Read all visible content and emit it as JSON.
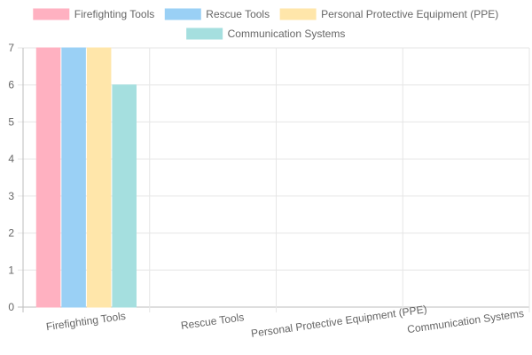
{
  "chart_data": {
    "type": "bar",
    "categories": [
      "Firefighting Tools",
      "Rescue Tools",
      "Personal Protective Equipment (PPE)",
      "Communication Systems"
    ],
    "series": [
      {
        "name": "Firefighting Tools",
        "values": [
          7,
          0,
          0,
          0
        ],
        "color": "#FFB1C1",
        "border": "#FF6384"
      },
      {
        "name": "Rescue Tools",
        "values": [
          7,
          0,
          0,
          0
        ],
        "color": "#9AD0F5",
        "border": "#36A2EB"
      },
      {
        "name": "Personal Protective Equipment (PPE)",
        "values": [
          7,
          0,
          0,
          0
        ],
        "color": "#FFE6AA",
        "border": "#FFCE56"
      },
      {
        "name": "Communication Systems",
        "values": [
          6,
          0,
          0,
          0
        ],
        "color": "#A5DFDF",
        "border": "#4BC0C0"
      }
    ],
    "y_ticks": [
      "0",
      "1",
      "2",
      "3",
      "4",
      "5",
      "6",
      "7"
    ],
    "ylim": [
      0,
      7
    ],
    "grid": true,
    "legend_position": "top",
    "title": "",
    "xlabel": "",
    "ylabel": ""
  }
}
